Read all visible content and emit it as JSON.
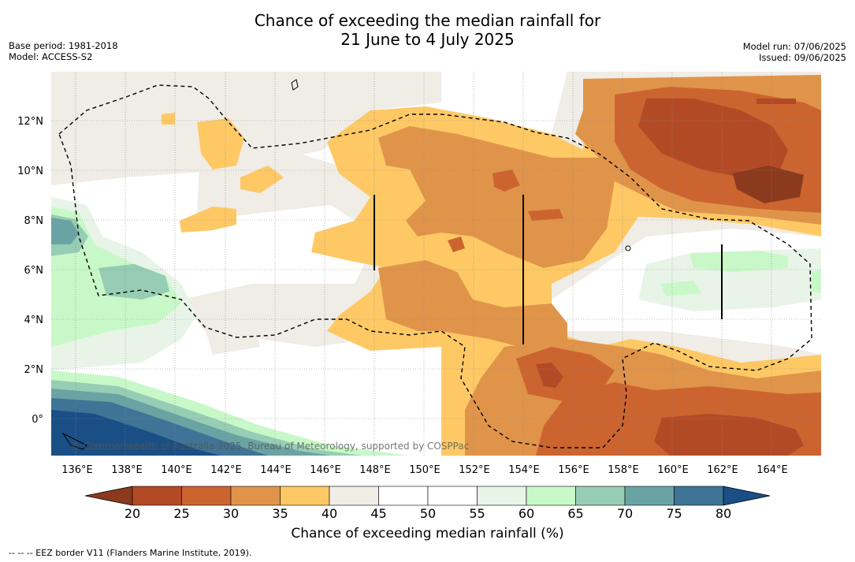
{
  "title_line1": "Chance of exceeding the median rainfall for",
  "title_line2": "21 June to 4 July 2025",
  "base_period": "Base period: 1981-2018",
  "model": "Model: ACCESS-S2",
  "model_run": "Model run: 07/06/2025",
  "issued": "Issued: 09/06/2025",
  "copyright": "© Commonwealth of Australia 2025, Bureau of Meteorology, supported by COSPPac",
  "colorbar": {
    "title": "Chance of exceeding median rainfall (%)",
    "ticks": [
      "20",
      "25",
      "30",
      "35",
      "40",
      "45",
      "50",
      "55",
      "60",
      "65",
      "70",
      "75",
      "80"
    ],
    "colors": [
      "#8b3a1e",
      "#b34a26",
      "#cc6430",
      "#e0944a",
      "#fec965",
      "#f0ece6",
      "#ffffff",
      "#ffffff",
      "#e8f4e8",
      "#c8f8c8",
      "#96cdb4",
      "#6aa3a3",
      "#3f7497",
      "#1a4f86"
    ]
  },
  "map": {
    "lon_labels": [
      "136°E",
      "138°E",
      "140°E",
      "142°E",
      "144°E",
      "146°E",
      "148°E",
      "150°E",
      "152°E",
      "154°E",
      "156°E",
      "158°E",
      "160°E",
      "162°E",
      "164°E"
    ],
    "lat_labels": [
      "12°N",
      "10°N",
      "8°N",
      "6°N",
      "4°N",
      "2°N",
      "0°"
    ]
  },
  "footnote": "--  --  -- EEZ border V11 (Flanders Marine Institute, 2019)."
}
